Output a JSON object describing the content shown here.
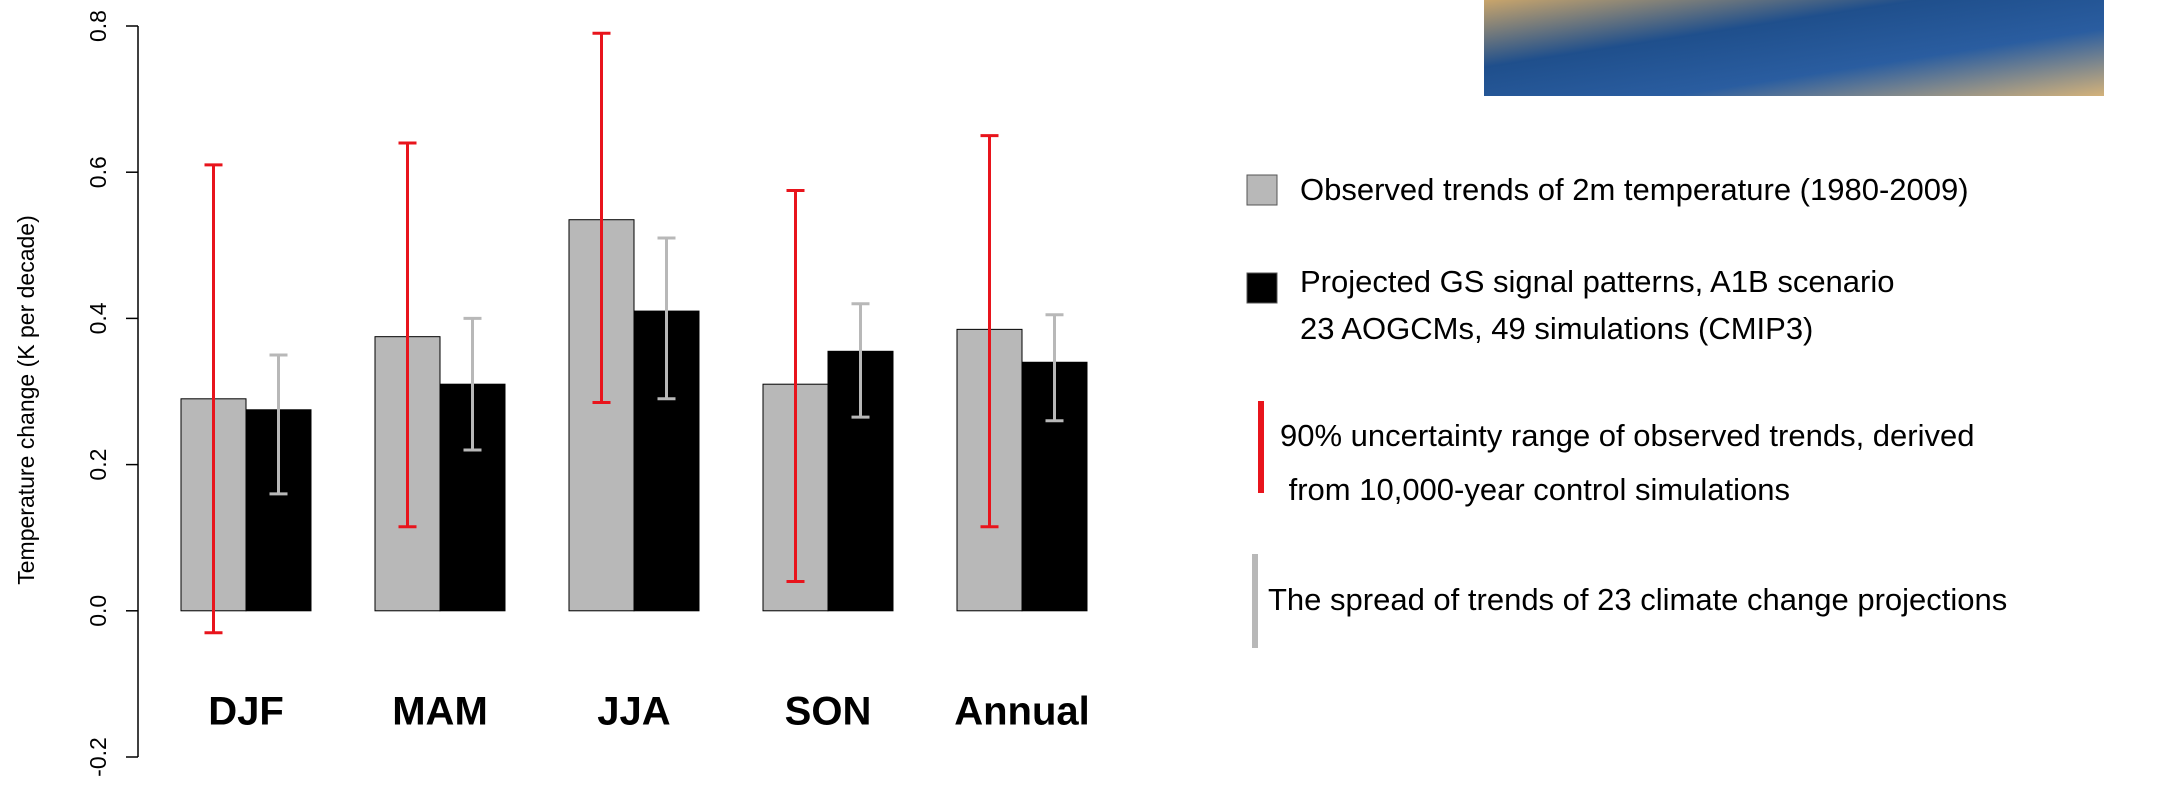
{
  "chart_data": {
    "type": "bar",
    "y_label": "Temperature change (K per decade)",
    "categories": [
      "DJF",
      "MAM",
      "JJA",
      "SON",
      "Annual"
    ],
    "ylim": [
      -0.2,
      0.8
    ],
    "yticks": [
      {
        "value": -0.2,
        "label": "-0.2"
      },
      {
        "value": 0,
        "label": "0.0"
      },
      0.2,
      0.4,
      0.6,
      0.8
    ],
    "series": [
      {
        "name": [
          "Observed trends of 2m temperature (1980-2009)"
        ],
        "color": "#b8b8b8",
        "values": [
          0.29,
          0.375,
          0.535,
          0.31,
          0.385
        ],
        "error_low": [
          -0.03,
          0.115,
          0.285,
          0.04,
          0.115
        ],
        "error_high": [
          0.61,
          0.64,
          0.79,
          0.575,
          0.65
        ],
        "error_color": "#e8141c",
        "error_label": [
          "90% uncertainty range of observed trends, derived",
          " from 10,000-year control simulations"
        ]
      },
      {
        "name": [
          "Projected GS signal patterns, A1B scenario",
          "23 AOGCMs, 49 simulations (CMIP3)"
        ],
        "color": "#000000",
        "values": [
          0.275,
          0.31,
          0.41,
          0.355,
          0.34
        ],
        "error_low": [
          0.16,
          0.22,
          0.29,
          0.265,
          0.26
        ],
        "error_high": [
          0.35,
          0.4,
          0.51,
          0.42,
          0.405
        ],
        "error_color": "#b8b8b8",
        "error_label": [
          "The spread of trends of 23 climate change projections"
        ]
      }
    ]
  }
}
